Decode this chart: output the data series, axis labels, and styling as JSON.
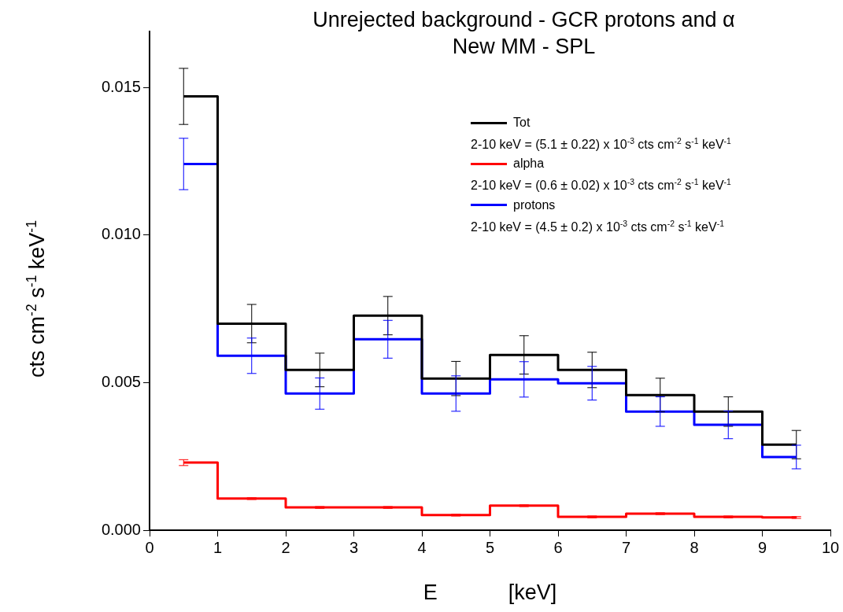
{
  "chart_data": {
    "type": "step",
    "title": "Unrejected background - GCR protons and α",
    "subtitle": "New MM - SPL",
    "xlabel": "E            [keV]",
    "ylabel": "cts cm$^{-2}$ s$^{-1}$ keV$^{-1}$",
    "x": [
      0.5,
      1.5,
      2.5,
      3.5,
      4.5,
      5.5,
      6.5,
      7.5,
      8.5,
      9.5
    ],
    "series": [
      {
        "name": "Tot",
        "color": "#000000",
        "values": [
          0.0147,
          0.007,
          0.00543,
          0.00727,
          0.00514,
          0.00594,
          0.00543,
          0.00458,
          0.00402,
          0.0029
        ],
        "errors": [
          0.00095,
          0.00065,
          0.00057,
          0.00065,
          0.00058,
          0.00065,
          0.0006,
          0.00057,
          0.0005,
          0.00048
        ]
      },
      {
        "name": "alpha",
        "color": "#ff0000",
        "values": [
          0.00229,
          0.00107,
          0.00077,
          0.00077,
          0.00051,
          0.00083,
          0.00045,
          0.00056,
          0.00045,
          0.00043
        ],
        "errors": [
          0.0001,
          3e-05,
          3e-05,
          3e-05,
          3e-05,
          3e-05,
          3e-05,
          3e-05,
          3e-05,
          3e-05
        ]
      },
      {
        "name": "protons",
        "color": "#0000ff",
        "values": [
          0.01241,
          0.00591,
          0.00463,
          0.00647,
          0.00463,
          0.00511,
          0.00498,
          0.00402,
          0.00357,
          0.00248
        ],
        "errors": [
          0.00087,
          0.0006,
          0.00053,
          0.00064,
          0.0006,
          0.0006,
          0.00057,
          0.0005,
          0.00047,
          0.0004
        ]
      }
    ],
    "annotations": [
      "2-10 keV = (5.1 ± 0.22) x 10$^{-3}$ cts cm$^{-2}$ s$^{-1}$ keV$^{-1}$",
      "2-10 keV = (0.6 ± 0.02) x 10$^{-3}$ cts cm$^{-2}$ s$^{-1}$ keV$^{-1}$",
      "2-10 keV = (4.5 ± 0.2) x 10$^{-3}$ cts cm$^{-2}$ s$^{-1}$ keV$^{-1}$"
    ],
    "xlim": [
      0,
      10
    ],
    "xticks": [
      0,
      1,
      2,
      3,
      4,
      5,
      6,
      7,
      8,
      9,
      10
    ],
    "ylim": [
      0,
      0.0169
    ],
    "yticks": [
      {
        "value": 0,
        "label": "0.000"
      },
      {
        "value": 0.005,
        "label": "0.005"
      },
      {
        "value": 0.01,
        "label": "0.010"
      },
      {
        "value": 0.015,
        "label": "0.015"
      }
    ],
    "grid": false,
    "legend": "top right",
    "marker": "none",
    "line_style": "solid"
  }
}
